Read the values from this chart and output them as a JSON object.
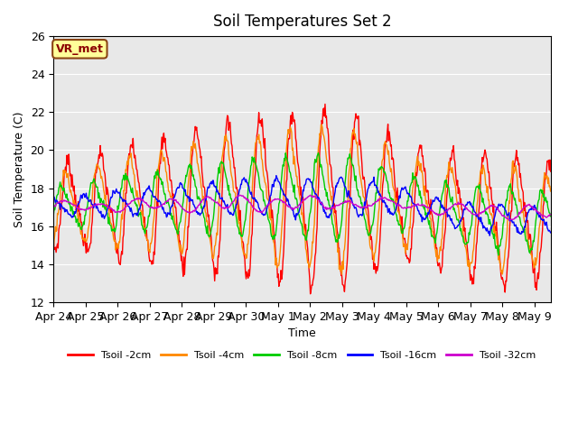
{
  "title": "Soil Temperatures Set 2",
  "xlabel": "Time",
  "ylabel": "Soil Temperature (C)",
  "ylim": [
    12,
    26
  ],
  "background_color": "#ffffff",
  "plot_bg_color": "#e8e8e8",
  "annotation": "VR_met",
  "legend": [
    "Tsoil -2cm",
    "Tsoil -4cm",
    "Tsoil -8cm",
    "Tsoil -16cm",
    "Tsoil -32cm"
  ],
  "colors": [
    "#ff0000",
    "#ff8800",
    "#00cc00",
    "#0000ff",
    "#cc00cc"
  ],
  "xtick_labels": [
    "Apr 24",
    "Apr 25",
    "Apr 26",
    "Apr 27",
    "Apr 28",
    "Apr 29",
    "Apr 30",
    "May 1",
    "May 2",
    "May 3",
    "May 4",
    "May 5",
    "May 6",
    "May 7",
    "May 8",
    "May 9"
  ],
  "n_days": 15.5,
  "pts_per_day": 48
}
